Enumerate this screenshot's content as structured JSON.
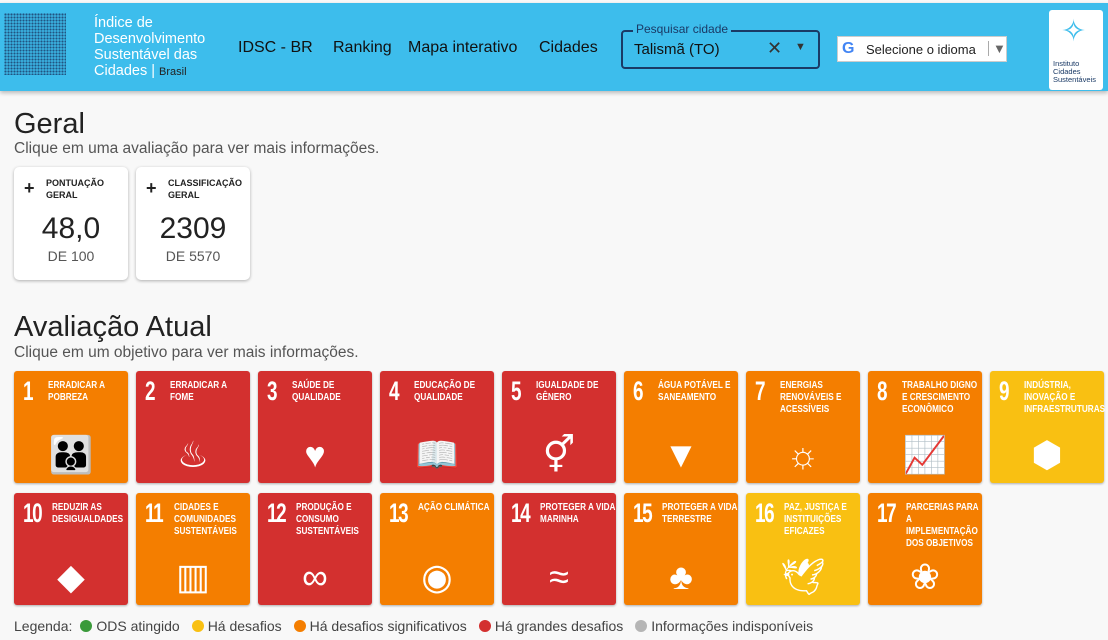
{
  "header": {
    "brand_lines": [
      "Índice de",
      "Desenvolvimento",
      "Sustentável das",
      "Cidades"
    ],
    "brand_country": "Brasil",
    "nav": [
      "IDSC - BR",
      "Ranking",
      "Mapa interativo",
      "Cidades"
    ],
    "search": {
      "label": "Pesquisar cidade",
      "value": "Talismã (TO)"
    },
    "language": {
      "label": "Selecione o idioma"
    },
    "partner_logo": "Instituto Cidades Sustentáveis"
  },
  "geral": {
    "title": "Geral",
    "subtitle": "Clique em uma avaliação para ver mais informações.",
    "cards": [
      {
        "label": "PONTUAÇÃO GERAL",
        "value": "48,0",
        "detail": "DE 100"
      },
      {
        "label": "CLASSIFICAÇÃO GERAL",
        "value": "2309",
        "detail": "DE 5570"
      }
    ]
  },
  "atual": {
    "title": "Avaliação Atual",
    "subtitle": "Clique em um objetivo para ver mais informações.",
    "goals": [
      {
        "n": "1",
        "title": "Erradicar a pobreza",
        "status": "orange",
        "icon": "family-icon"
      },
      {
        "n": "2",
        "title": "Erradicar a fome",
        "status": "red",
        "icon": "bowl-icon"
      },
      {
        "n": "3",
        "title": "Saúde de qualidade",
        "status": "red",
        "icon": "heartbeat-icon"
      },
      {
        "n": "4",
        "title": "Educação de qualidade",
        "status": "red",
        "icon": "book-icon"
      },
      {
        "n": "5",
        "title": "Igualdade de gênero",
        "status": "red",
        "icon": "gender-icon"
      },
      {
        "n": "6",
        "title": "Água potável e saneamento",
        "status": "orange",
        "icon": "water-icon"
      },
      {
        "n": "7",
        "title": "Energias renováveis e acessíveis",
        "status": "orange",
        "icon": "sun-power-icon"
      },
      {
        "n": "8",
        "title": "Trabalho digno e crescimento econômico",
        "status": "orange",
        "icon": "growth-chart-icon"
      },
      {
        "n": "9",
        "title": "Indústria, inovação e infraestruturas",
        "status": "yellow",
        "icon": "cubes-icon"
      },
      {
        "n": "10",
        "title": "Reduzir as desigualdades",
        "status": "red",
        "icon": "equality-arrows-icon"
      },
      {
        "n": "11",
        "title": "Cidades e comunidades sustentáveis",
        "status": "orange",
        "icon": "buildings-icon"
      },
      {
        "n": "12",
        "title": "Produção e consumo sustentáveis",
        "status": "red",
        "icon": "infinity-icon"
      },
      {
        "n": "13",
        "title": "Ação climática",
        "status": "orange",
        "icon": "eye-globe-icon"
      },
      {
        "n": "14",
        "title": "Proteger a vida marinha",
        "status": "red",
        "icon": "fish-icon"
      },
      {
        "n": "15",
        "title": "Proteger a vida terrestre",
        "status": "orange",
        "icon": "tree-icon"
      },
      {
        "n": "16",
        "title": "Paz, justiça e instituições eficazes",
        "status": "yellow",
        "icon": "dove-icon"
      },
      {
        "n": "17",
        "title": "Parcerias para a implementação dos objetivos",
        "status": "orange",
        "icon": "rings-icon"
      }
    ]
  },
  "legend": {
    "label": "Legenda:",
    "items": [
      {
        "text": "ODS atingido",
        "color": "#3a9a3a"
      },
      {
        "text": "Há desafios",
        "color": "#f9c012"
      },
      {
        "text": "Há desafios significativos",
        "color": "#f47e00"
      },
      {
        "text": "Há grandes desafios",
        "color": "#d3302f"
      },
      {
        "text": "Informações indisponíveis",
        "color": "#b5b5b5"
      }
    ]
  },
  "colors": {
    "header": "#3dbdec",
    "red": "#d3302f",
    "orange": "#f47e00",
    "yellow": "#f9c012"
  }
}
